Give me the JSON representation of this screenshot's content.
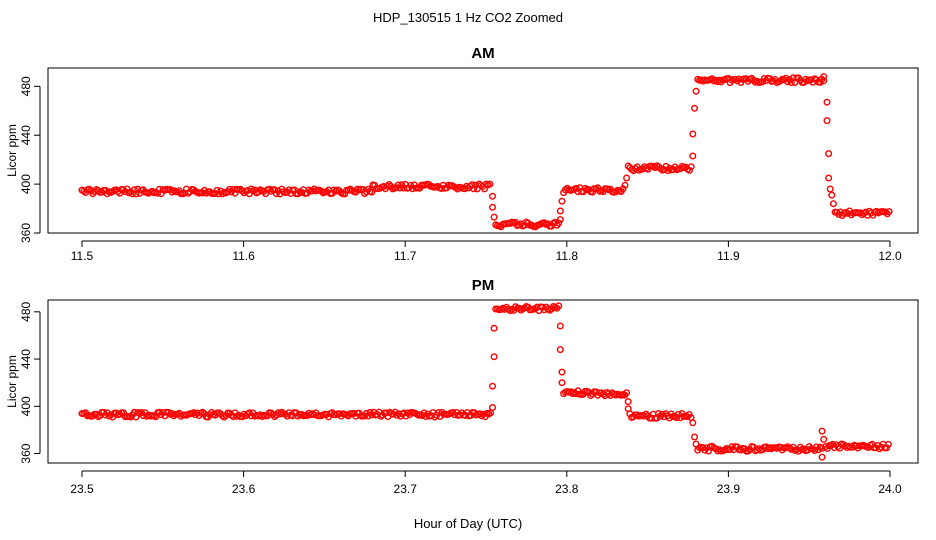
{
  "figure": {
    "suptitle": "HDP_130515  1 Hz CO2 Zoomed",
    "xlabel": "Hour of Day (UTC)"
  },
  "colors": {
    "points": "#ff0000",
    "axis": "#000000"
  },
  "chart_data": [
    {
      "type": "scatter",
      "title": "AM",
      "xlabel": "",
      "ylabel": "Licor ppm",
      "xlim": [
        11.5,
        12.0
      ],
      "ylim": [
        360,
        495
      ],
      "xticks": [
        "11.5",
        "11.6",
        "11.7",
        "11.8",
        "11.9",
        "12.0"
      ],
      "yticks": [
        "360",
        "400",
        "440",
        "480"
      ],
      "marker": "open-circle",
      "color": "#ff0000",
      "segments": [
        {
          "x_start": 11.5,
          "x_end": 11.68,
          "y": 394
        },
        {
          "x_start": 11.68,
          "x_end": 11.753,
          "y": 398
        },
        {
          "x_start": 11.756,
          "x_end": 11.795,
          "y": 367
        },
        {
          "x_start": 11.798,
          "x_end": 11.835,
          "y": 395
        },
        {
          "x_start": 11.838,
          "x_end": 11.877,
          "y": 413
        },
        {
          "x_start": 11.881,
          "x_end": 11.96,
          "y": 485
        },
        {
          "x_start": 11.966,
          "x_end": 12.0,
          "y": 376
        }
      ],
      "transition_points": [
        {
          "x": 11.754,
          "y": 390
        },
        {
          "x": 11.754,
          "y": 381
        },
        {
          "x": 11.755,
          "y": 373
        },
        {
          "x": 11.796,
          "y": 371
        },
        {
          "x": 11.796,
          "y": 378
        },
        {
          "x": 11.797,
          "y": 386
        },
        {
          "x": 11.836,
          "y": 399
        },
        {
          "x": 11.837,
          "y": 405
        },
        {
          "x": 11.878,
          "y": 423
        },
        {
          "x": 11.878,
          "y": 441
        },
        {
          "x": 11.879,
          "y": 462
        },
        {
          "x": 11.88,
          "y": 476
        },
        {
          "x": 11.959,
          "y": 488
        },
        {
          "x": 11.961,
          "y": 467
        },
        {
          "x": 11.961,
          "y": 452
        },
        {
          "x": 11.962,
          "y": 425
        },
        {
          "x": 11.962,
          "y": 405
        },
        {
          "x": 11.963,
          "y": 396
        },
        {
          "x": 11.964,
          "y": 391
        },
        {
          "x": 11.965,
          "y": 384
        }
      ]
    },
    {
      "type": "scatter",
      "title": "PM",
      "xlabel": "",
      "ylabel": "Licor ppm",
      "xlim": [
        23.5,
        24.0
      ],
      "ylim": [
        352,
        490
      ],
      "xticks": [
        "23.5",
        "23.6",
        "23.7",
        "23.8",
        "23.9",
        "24.0"
      ],
      "yticks": [
        "360",
        "400",
        "440",
        "480"
      ],
      "marker": "open-circle",
      "color": "#ff0000",
      "segments": [
        {
          "x_start": 23.5,
          "x_end": 23.753,
          "y": 393
        },
        {
          "x_start": 23.756,
          "x_end": 23.795,
          "y": 483
        },
        {
          "x_start": 23.798,
          "x_end": 23.837,
          "y": 411
        },
        {
          "x_start": 23.839,
          "x_end": 23.877,
          "y": 392
        },
        {
          "x_start": 23.881,
          "x_end": 23.958,
          "y": 364
        },
        {
          "x_start": 23.96,
          "x_end": 24.0,
          "y": 366
        }
      ],
      "transition_points": [
        {
          "x": 23.754,
          "y": 399
        },
        {
          "x": 23.754,
          "y": 417
        },
        {
          "x": 23.755,
          "y": 442
        },
        {
          "x": 23.755,
          "y": 466
        },
        {
          "x": 23.796,
          "y": 468
        },
        {
          "x": 23.796,
          "y": 448
        },
        {
          "x": 23.797,
          "y": 429
        },
        {
          "x": 23.797,
          "y": 420
        },
        {
          "x": 23.838,
          "y": 404
        },
        {
          "x": 23.838,
          "y": 398
        },
        {
          "x": 23.878,
          "y": 386
        },
        {
          "x": 23.879,
          "y": 374
        },
        {
          "x": 23.88,
          "y": 368
        },
        {
          "x": 23.958,
          "y": 379
        },
        {
          "x": 23.958,
          "y": 357
        },
        {
          "x": 23.959,
          "y": 372
        }
      ]
    }
  ]
}
